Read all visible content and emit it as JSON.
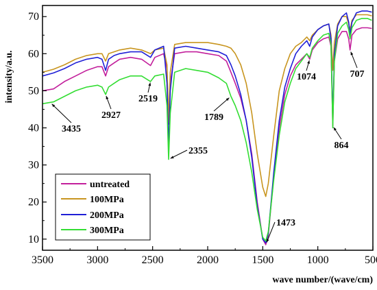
{
  "chart_data": {
    "type": "line",
    "xlabel": "wave number/(wave/cm)",
    "ylabel": "intensity/a.u.",
    "xlim": [
      3500,
      500
    ],
    "ylim": [
      7,
      73
    ],
    "x_ticks": [
      3500,
      3000,
      2500,
      2000,
      1500,
      1000,
      500
    ],
    "y_ticks": [
      10,
      20,
      30,
      40,
      50,
      60,
      70
    ],
    "x_tick_labels": [
      "3500",
      "3000",
      "2500",
      "2000",
      "1500",
      "1000",
      "500"
    ],
    "y_tick_labels": [
      "10",
      "20",
      "30",
      "40",
      "50",
      "60",
      "70"
    ],
    "grid": false,
    "legend_position": "bottom-left",
    "series": [
      {
        "name": "untreated",
        "color": "#c21e9b",
        "points": [
          [
            3500,
            50
          ],
          [
            3400,
            50.5
          ],
          [
            3300,
            52.5
          ],
          [
            3200,
            54
          ],
          [
            3100,
            55.5
          ],
          [
            3000,
            56.5
          ],
          [
            2960,
            56.5
          ],
          [
            2927,
            54
          ],
          [
            2900,
            56.5
          ],
          [
            2850,
            57.5
          ],
          [
            2800,
            58.5
          ],
          [
            2700,
            59
          ],
          [
            2600,
            58.5
          ],
          [
            2519,
            56.8
          ],
          [
            2480,
            59
          ],
          [
            2400,
            60
          ],
          [
            2370,
            56
          ],
          [
            2355,
            41
          ],
          [
            2340,
            52
          ],
          [
            2300,
            60
          ],
          [
            2200,
            60.5
          ],
          [
            2100,
            60.5
          ],
          [
            2000,
            60
          ],
          [
            1900,
            59.5
          ],
          [
            1830,
            58
          ],
          [
            1789,
            55
          ],
          [
            1750,
            52
          ],
          [
            1700,
            48
          ],
          [
            1650,
            42
          ],
          [
            1600,
            33
          ],
          [
            1550,
            20
          ],
          [
            1500,
            10
          ],
          [
            1473,
            8.5
          ],
          [
            1450,
            11
          ],
          [
            1400,
            27
          ],
          [
            1350,
            40
          ],
          [
            1300,
            49
          ],
          [
            1250,
            54
          ],
          [
            1200,
            57
          ],
          [
            1150,
            58.5
          ],
          [
            1100,
            60
          ],
          [
            1074,
            58.5
          ],
          [
            1050,
            61
          ],
          [
            1000,
            63
          ],
          [
            950,
            64
          ],
          [
            900,
            64.5
          ],
          [
            880,
            62
          ],
          [
            864,
            40.5
          ],
          [
            850,
            58
          ],
          [
            820,
            64
          ],
          [
            780,
            66
          ],
          [
            740,
            66
          ],
          [
            720,
            64
          ],
          [
            707,
            61
          ],
          [
            690,
            65
          ],
          [
            650,
            66.5
          ],
          [
            600,
            67
          ],
          [
            550,
            67
          ],
          [
            510,
            66.8
          ]
        ]
      },
      {
        "name": "100MPa",
        "color": "#c8951f",
        "points": [
          [
            3500,
            55
          ],
          [
            3400,
            55.8
          ],
          [
            3300,
            57
          ],
          [
            3200,
            58.5
          ],
          [
            3100,
            59.5
          ],
          [
            3000,
            60
          ],
          [
            2960,
            60
          ],
          [
            2927,
            58
          ],
          [
            2900,
            60
          ],
          [
            2850,
            60.5
          ],
          [
            2800,
            61
          ],
          [
            2700,
            61.5
          ],
          [
            2600,
            61
          ],
          [
            2519,
            60
          ],
          [
            2480,
            61
          ],
          [
            2400,
            61.5
          ],
          [
            2370,
            57
          ],
          [
            2355,
            41.5
          ],
          [
            2340,
            55
          ],
          [
            2300,
            62.5
          ],
          [
            2200,
            63
          ],
          [
            2100,
            63
          ],
          [
            2000,
            63
          ],
          [
            1900,
            62.5
          ],
          [
            1830,
            62
          ],
          [
            1789,
            61.5
          ],
          [
            1750,
            60
          ],
          [
            1700,
            57
          ],
          [
            1650,
            52
          ],
          [
            1600,
            44
          ],
          [
            1550,
            33
          ],
          [
            1500,
            24
          ],
          [
            1473,
            21.5
          ],
          [
            1450,
            25
          ],
          [
            1400,
            38
          ],
          [
            1350,
            50
          ],
          [
            1300,
            56
          ],
          [
            1250,
            60
          ],
          [
            1200,
            62
          ],
          [
            1150,
            63
          ],
          [
            1100,
            64.5
          ],
          [
            1074,
            63.5
          ],
          [
            1050,
            65
          ],
          [
            1000,
            66.5
          ],
          [
            950,
            67.5
          ],
          [
            900,
            68
          ],
          [
            880,
            65
          ],
          [
            864,
            55.5
          ],
          [
            850,
            63
          ],
          [
            820,
            68
          ],
          [
            780,
            70
          ],
          [
            740,
            70
          ],
          [
            720,
            68
          ],
          [
            707,
            66.5
          ],
          [
            690,
            69
          ],
          [
            650,
            70.5
          ],
          [
            600,
            70.5
          ],
          [
            550,
            70.5
          ],
          [
            510,
            70.2
          ]
        ]
      },
      {
        "name": "200MPa",
        "color": "#1f1fd6",
        "points": [
          [
            3500,
            54
          ],
          [
            3400,
            54.8
          ],
          [
            3300,
            56
          ],
          [
            3200,
            57.5
          ],
          [
            3100,
            58.5
          ],
          [
            3000,
            59
          ],
          [
            2960,
            58.5
          ],
          [
            2927,
            55.5
          ],
          [
            2900,
            58.5
          ],
          [
            2850,
            59.5
          ],
          [
            2800,
            60
          ],
          [
            2700,
            60.5
          ],
          [
            2600,
            60.5
          ],
          [
            2519,
            59
          ],
          [
            2480,
            61
          ],
          [
            2400,
            62
          ],
          [
            2370,
            52
          ],
          [
            2355,
            34
          ],
          [
            2340,
            50
          ],
          [
            2300,
            61.5
          ],
          [
            2200,
            62
          ],
          [
            2100,
            61.5
          ],
          [
            2000,
            61
          ],
          [
            1900,
            60.5
          ],
          [
            1830,
            59.5
          ],
          [
            1789,
            57
          ],
          [
            1750,
            54
          ],
          [
            1700,
            49
          ],
          [
            1650,
            42
          ],
          [
            1600,
            32
          ],
          [
            1550,
            19
          ],
          [
            1500,
            10
          ],
          [
            1473,
            9
          ],
          [
            1450,
            11.5
          ],
          [
            1400,
            28
          ],
          [
            1350,
            42
          ],
          [
            1300,
            51
          ],
          [
            1250,
            56
          ],
          [
            1200,
            60
          ],
          [
            1150,
            62
          ],
          [
            1100,
            63.5
          ],
          [
            1074,
            62
          ],
          [
            1050,
            64.5
          ],
          [
            1000,
            66.5
          ],
          [
            950,
            67.5
          ],
          [
            900,
            68
          ],
          [
            880,
            64
          ],
          [
            864,
            42
          ],
          [
            850,
            60
          ],
          [
            820,
            67.5
          ],
          [
            780,
            70
          ],
          [
            740,
            71
          ],
          [
            720,
            68.5
          ],
          [
            707,
            65
          ],
          [
            690,
            68.5
          ],
          [
            650,
            71
          ],
          [
            600,
            71.5
          ],
          [
            550,
            71.5
          ],
          [
            510,
            71.2
          ]
        ]
      },
      {
        "name": "300MPa",
        "color": "#33dd33",
        "points": [
          [
            3500,
            46.5
          ],
          [
            3400,
            47
          ],
          [
            3300,
            48.5
          ],
          [
            3200,
            50
          ],
          [
            3100,
            51
          ],
          [
            3000,
            51.5
          ],
          [
            2960,
            51
          ],
          [
            2927,
            49
          ],
          [
            2900,
            51
          ],
          [
            2850,
            52
          ],
          [
            2800,
            53
          ],
          [
            2700,
            54
          ],
          [
            2600,
            54
          ],
          [
            2519,
            52.5
          ],
          [
            2480,
            54
          ],
          [
            2400,
            54.5
          ],
          [
            2370,
            46
          ],
          [
            2355,
            31.5
          ],
          [
            2340,
            44
          ],
          [
            2300,
            55
          ],
          [
            2200,
            56
          ],
          [
            2100,
            55.5
          ],
          [
            2000,
            55
          ],
          [
            1900,
            53.5
          ],
          [
            1830,
            52
          ],
          [
            1789,
            48.5
          ],
          [
            1750,
            46
          ],
          [
            1700,
            42
          ],
          [
            1650,
            36
          ],
          [
            1600,
            28
          ],
          [
            1550,
            18
          ],
          [
            1500,
            10.5
          ],
          [
            1473,
            9.5
          ],
          [
            1450,
            12
          ],
          [
            1400,
            26
          ],
          [
            1350,
            38
          ],
          [
            1300,
            47
          ],
          [
            1250,
            52
          ],
          [
            1200,
            56
          ],
          [
            1150,
            58
          ],
          [
            1100,
            60
          ],
          [
            1074,
            59
          ],
          [
            1050,
            61.5
          ],
          [
            1000,
            63.5
          ],
          [
            950,
            65
          ],
          [
            900,
            65.5
          ],
          [
            880,
            62.5
          ],
          [
            864,
            40
          ],
          [
            850,
            58
          ],
          [
            820,
            65.5
          ],
          [
            780,
            67.5
          ],
          [
            740,
            68.5
          ],
          [
            720,
            66.5
          ],
          [
            707,
            64
          ],
          [
            690,
            67
          ],
          [
            650,
            69
          ],
          [
            600,
            69.5
          ],
          [
            550,
            69.5
          ],
          [
            510,
            69
          ]
        ]
      }
    ],
    "annotations": [
      {
        "label": "3435",
        "x": 3435,
        "y": 47
      },
      {
        "label": "2927",
        "x": 2927,
        "y": 49
      },
      {
        "label": "2519",
        "x": 2519,
        "y": 52.5
      },
      {
        "label": "2355",
        "x": 2355,
        "y": 31.5
      },
      {
        "label": "1789",
        "x": 1789,
        "y": 48.5
      },
      {
        "label": "1473",
        "x": 1473,
        "y": 8.5
      },
      {
        "label": "1074",
        "x": 1074,
        "y": 58.5
      },
      {
        "label": "864",
        "x": 864,
        "y": 40.5
      },
      {
        "label": "707",
        "x": 707,
        "y": 61
      }
    ]
  }
}
